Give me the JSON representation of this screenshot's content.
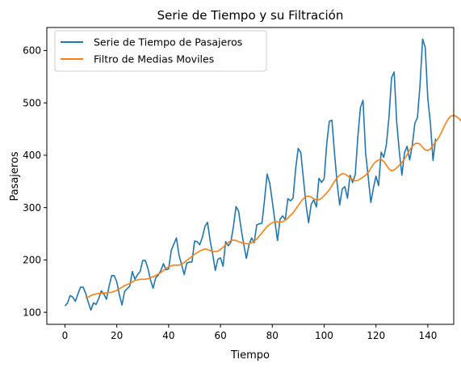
{
  "chart_data": {
    "type": "line",
    "title": "Serie de Tiempo y su Filtración",
    "xlabel": "Tiempo",
    "ylabel": "Pasajeros",
    "xlim": [
      -7,
      150
    ],
    "ylim": [
      77,
      644
    ],
    "xticks": [
      0,
      20,
      40,
      60,
      80,
      100,
      120,
      140
    ],
    "yticks": [
      100,
      200,
      300,
      400,
      500,
      600
    ],
    "grid": false,
    "legend_position": "upper-left",
    "series": [
      {
        "name": "Serie de Tiempo de Pasajeros",
        "color": "#1f77b4",
        "x_start": 0,
        "values": [
          112,
          118,
          132,
          129,
          121,
          135,
          148,
          148,
          136,
          119,
          104,
          118,
          115,
          126,
          141,
          135,
          125,
          149,
          170,
          170,
          158,
          133,
          114,
          140,
          145,
          150,
          178,
          163,
          172,
          178,
          199,
          199,
          184,
          162,
          146,
          166,
          171,
          180,
          193,
          181,
          183,
          218,
          230,
          242,
          209,
          191,
          172,
          194,
          196,
          196,
          236,
          235,
          229,
          243,
          264,
          272,
          237,
          211,
          180,
          201,
          204,
          188,
          235,
          227,
          234,
          264,
          302,
          293,
          259,
          229,
          203,
          229,
          242,
          233,
          267,
          269,
          270,
          315,
          364,
          347,
          312,
          274,
          237,
          278,
          284,
          277,
          317,
          313,
          318,
          374,
          413,
          405,
          355,
          306,
          271,
          306,
          315,
          301,
          356,
          348,
          355,
          422,
          465,
          467,
          404,
          347,
          305,
          336,
          340,
          318,
          362,
          348,
          363,
          435,
          491,
          505,
          404,
          359,
          310,
          337,
          360,
          342,
          406,
          396,
          420,
          472,
          548,
          559,
          463,
          407,
          362,
          405,
          417,
          391,
          419,
          461,
          472,
          535,
          622,
          606,
          508,
          461,
          390,
          432
        ]
      },
      {
        "name": "Filtro de Medias Moviles",
        "color": "#ff7f0e",
        "x_start": 8,
        "values": [
          127,
          129,
          132,
          134,
          135,
          136,
          136,
          137,
          137,
          138,
          138,
          140,
          142,
          145,
          148,
          151,
          153,
          155,
          158,
          161,
          162,
          163,
          163,
          163,
          164,
          166,
          168,
          170,
          173,
          176,
          180,
          184,
          187,
          189,
          190,
          190,
          190,
          192,
          195,
          199,
          203,
          207,
          211,
          214,
          217,
          219,
          221,
          220,
          218,
          216,
          216,
          217,
          220,
          224,
          229,
          233,
          237,
          238,
          237,
          235,
          233,
          232,
          231,
          231,
          233,
          236,
          240,
          246,
          252,
          258,
          264,
          268,
          271,
          273,
          273,
          272,
          273,
          276,
          280,
          285,
          290,
          297,
          304,
          311,
          317,
          321,
          322,
          320,
          317,
          315,
          315,
          318,
          323,
          328,
          334,
          342,
          350,
          357,
          362,
          365,
          364,
          361,
          357,
          354,
          351,
          352,
          355,
          358,
          362,
          367,
          375,
          383,
          388,
          391,
          392,
          388,
          381,
          374,
          370,
          372,
          376,
          381,
          386,
          393,
          401,
          410,
          417,
          422,
          423,
          421,
          415,
          410,
          409,
          412,
          419,
          426,
          432,
          441,
          452,
          462,
          470,
          475,
          476,
          474,
          470,
          465
        ]
      }
    ]
  }
}
